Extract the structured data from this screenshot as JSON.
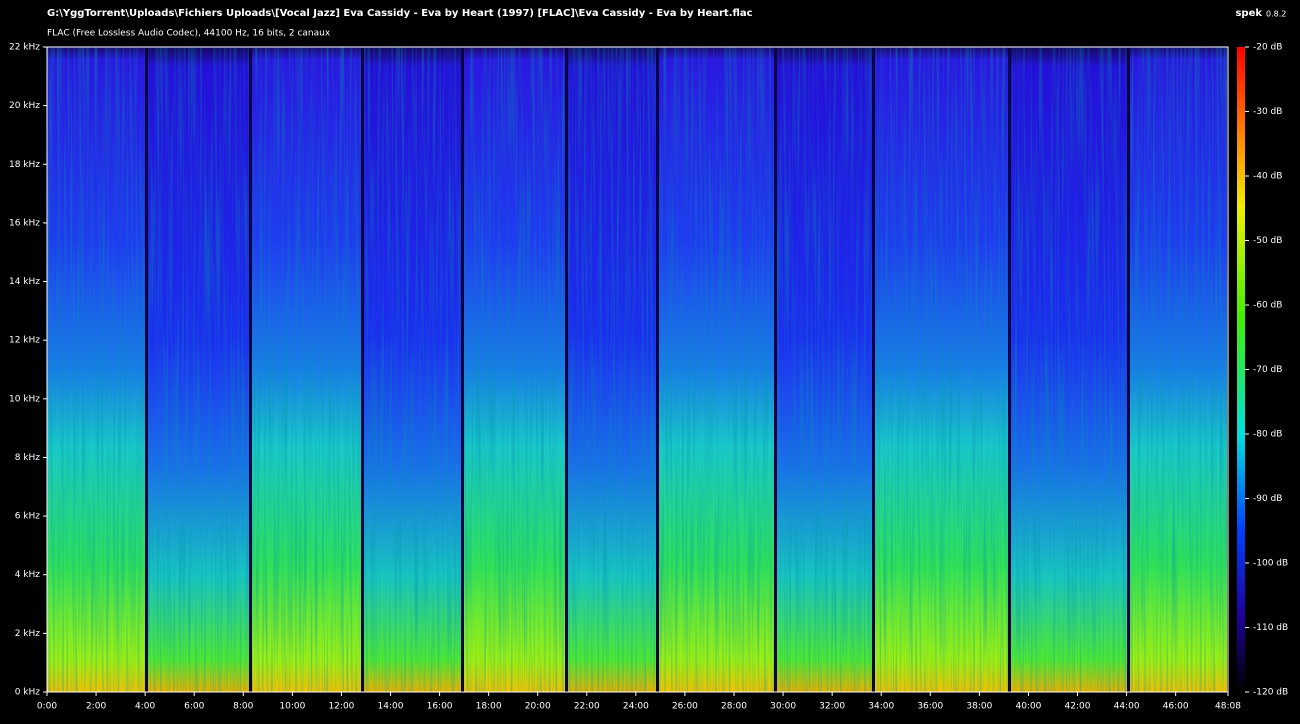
{
  "chart_data": {
    "type": "spectrogram",
    "title": "G:\\YggTorrent\\Uploads\\Fichiers Uploads\\[Vocal Jazz] Eva Cassidy - Eva by Heart (1997) [FLAC]\\Eva Cassidy - Eva by Heart.flac",
    "subtitle": "FLAC (Free Lossless Audio Codec), 44100 Hz, 16 bits, 2 canaux",
    "app": "spek",
    "version": "0.8.2",
    "xlim": [
      0,
      2888
    ],
    "xticks": [
      {
        "value": 0,
        "label": "0:00"
      },
      {
        "value": 120,
        "label": "2:00"
      },
      {
        "value": 240,
        "label": "4:00"
      },
      {
        "value": 360,
        "label": "6:00"
      },
      {
        "value": 480,
        "label": "8:00"
      },
      {
        "value": 600,
        "label": "10:00"
      },
      {
        "value": 720,
        "label": "12:00"
      },
      {
        "value": 840,
        "label": "14:00"
      },
      {
        "value": 960,
        "label": "16:00"
      },
      {
        "value": 1080,
        "label": "18:00"
      },
      {
        "value": 1200,
        "label": "20:00"
      },
      {
        "value": 1320,
        "label": "22:00"
      },
      {
        "value": 1440,
        "label": "24:00"
      },
      {
        "value": 1560,
        "label": "26:00"
      },
      {
        "value": 1680,
        "label": "28:00"
      },
      {
        "value": 1800,
        "label": "30:00"
      },
      {
        "value": 1920,
        "label": "32:00"
      },
      {
        "value": 2040,
        "label": "34:00"
      },
      {
        "value": 2160,
        "label": "36:00"
      },
      {
        "value": 2280,
        "label": "38:00"
      },
      {
        "value": 2400,
        "label": "40:00"
      },
      {
        "value": 2520,
        "label": "42:00"
      },
      {
        "value": 2640,
        "label": "44:00"
      },
      {
        "value": 2760,
        "label": "46:00"
      },
      {
        "value": 2888,
        "label": "48:08"
      }
    ],
    "ylim": [
      0,
      22
    ],
    "yticks": [
      {
        "value": 0,
        "label": "0 kHz"
      },
      {
        "value": 2,
        "label": "2 kHz"
      },
      {
        "value": 4,
        "label": "4 kHz"
      },
      {
        "value": 6,
        "label": "6 kHz"
      },
      {
        "value": 8,
        "label": "8 kHz"
      },
      {
        "value": 10,
        "label": "10 kHz"
      },
      {
        "value": 12,
        "label": "12 kHz"
      },
      {
        "value": 14,
        "label": "14 kHz"
      },
      {
        "value": 16,
        "label": "16 kHz"
      },
      {
        "value": 18,
        "label": "18 kHz"
      },
      {
        "value": 20,
        "label": "20 kHz"
      },
      {
        "value": 22,
        "label": "22 kHz"
      }
    ],
    "colorbar_lim": [
      -120,
      -20
    ],
    "colorbar_ticks": [
      {
        "value": -20,
        "label": "-20 dB"
      },
      {
        "value": -30,
        "label": "-30 dB"
      },
      {
        "value": -40,
        "label": "-40 dB"
      },
      {
        "value": -50,
        "label": "-50 dB"
      },
      {
        "value": -60,
        "label": "-60 dB"
      },
      {
        "value": -70,
        "label": "-70 dB"
      },
      {
        "value": -80,
        "label": "-80 dB"
      },
      {
        "value": -90,
        "label": "-90 dB"
      },
      {
        "value": -100,
        "label": "-100 dB"
      },
      {
        "value": -110,
        "label": "-110 dB"
      },
      {
        "value": -120,
        "label": "-120 dB"
      }
    ]
  }
}
